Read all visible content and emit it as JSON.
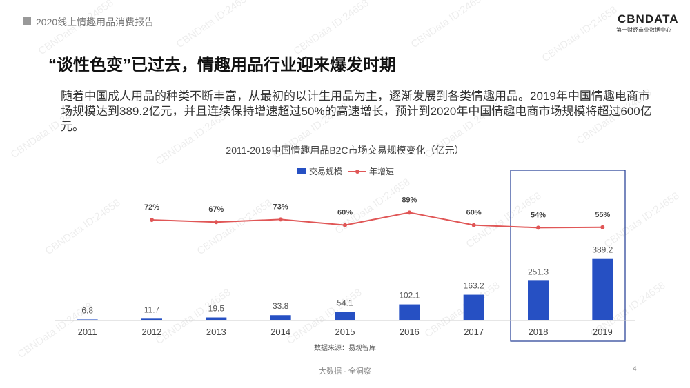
{
  "header": {
    "report": "2020线上情趣用品消费报告",
    "logo": "CBNDATA",
    "logo_sub": "第一财经商业数据中心"
  },
  "title": "“谈性色变”已过去，情趣用品行业迎来爆发时期",
  "paragraph": "随着中国成人用品的种类不断丰富，从最初的以计生用品为主，逐渐发展到各类情趣用品。2019年中国情趣电商市场规模达到389.2亿元，并且连续保持增速超过50%的高速增长，预计到2020年中国情趣电商市场规模将超过600亿元。",
  "watermark": "CBNData ID:24658",
  "chart_data": {
    "type": "bar-line",
    "title": "2011-2019中国情趣用品B2C市场交易规模变化（亿元）",
    "categories": [
      "2011",
      "2012",
      "2013",
      "2014",
      "2015",
      "2016",
      "2017",
      "2018",
      "2019"
    ],
    "series": [
      {
        "name": "交易规模",
        "type": "bar",
        "color": "#2650c3",
        "values": [
          6.8,
          11.7,
          19.5,
          33.8,
          54.1,
          102.1,
          163.2,
          251.3,
          389.2
        ]
      },
      {
        "name": "年增速",
        "type": "line",
        "axis": "y2",
        "color": "#e05656",
        "values": [
          null,
          72,
          67,
          73,
          60,
          89,
          60,
          54,
          55
        ],
        "value_labels": [
          null,
          "72%",
          "67%",
          "73%",
          "60%",
          "89%",
          "60%",
          "54%",
          "55%"
        ]
      }
    ],
    "ylim": [
      0,
      850
    ],
    "y2lim": [
      -160,
      150
    ],
    "source": "数据来源：易观智库"
  },
  "footer": {
    "slogan": "大数据 · 全洞察",
    "page": "4"
  }
}
